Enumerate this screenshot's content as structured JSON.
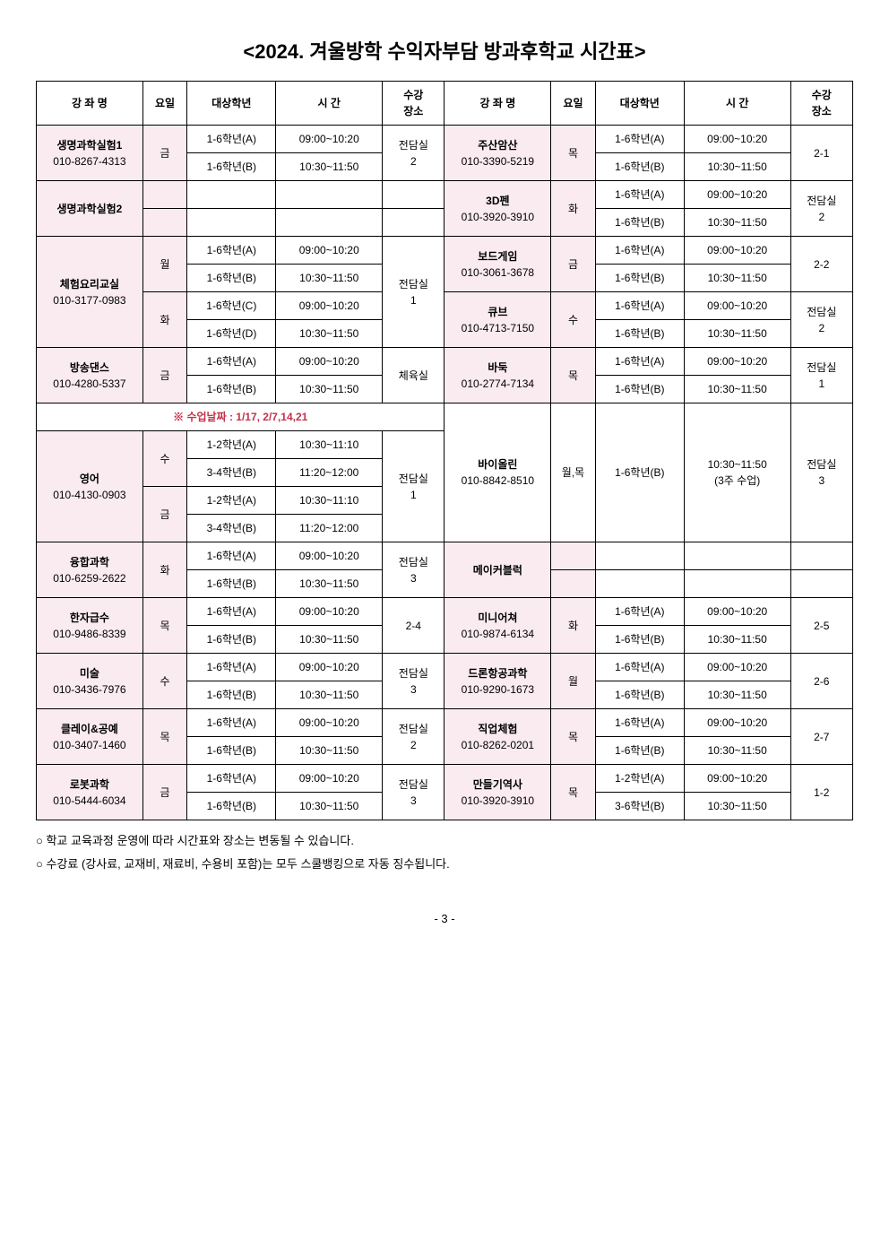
{
  "title": "<2024. 겨울방학 수익자부담 방과후학교 시간표>",
  "headers": {
    "course": "강 좌 명",
    "day": "요일",
    "grade": "대상학년",
    "time": "시 간",
    "place": "수강\n장소"
  },
  "colors": {
    "pink": "#f9ebf0",
    "noteText": "#c4324a"
  },
  "footnotes": [
    "○ 학교 교육과정 운영에 따라 시간표와 장소는 변동될 수 있습니다.",
    "○ 수강료 (강사료, 교재비, 재료비, 수용비 포함)는 모두 스쿨뱅킹으로 자동 징수됩니다."
  ],
  "pageNumber": "- 3 -",
  "noteLine": "※ 수업날짜 : 1/17, 2/7,14,21",
  "left": {
    "r1": {
      "name": "생명과학실험1",
      "phone": "010-8267-4313",
      "day": "금",
      "gA": "1-6학년(A)",
      "tA": "09:00~10:20",
      "gB": "1-6학년(B)",
      "tB": "10:30~11:50",
      "place": "전담실\n2"
    },
    "r2": {
      "name": "생명과학실험2"
    },
    "r3": {
      "name": "체험요리교실",
      "phone": "010-3177-0983",
      "day1": "월",
      "day2": "화",
      "gA": "1-6학년(A)",
      "tA": "09:00~10:20",
      "gB": "1-6학년(B)",
      "tB": "10:30~11:50",
      "gC": "1-6학년(C)",
      "tC": "09:00~10:20",
      "gD": "1-6학년(D)",
      "tD": "10:30~11:50",
      "place": "전담실\n1"
    },
    "r4": {
      "name": "방송댄스",
      "phone": "010-4280-5337",
      "day": "금",
      "gA": "1-6학년(A)",
      "tA": "09:00~10:20",
      "gB": "1-6학년(B)",
      "tB": "10:30~11:50",
      "place": "체육실"
    },
    "r5": {
      "name": "영어",
      "phone": "010-4130-0903",
      "day1": "수",
      "day2": "금",
      "gA": "1-2학년(A)",
      "tA": "10:30~11:10",
      "gB": "3-4학년(B)",
      "tB": "11:20~12:00",
      "gC": "1-2학년(A)",
      "tC": "10:30~11:10",
      "gD": "3-4학년(B)",
      "tD": "11:20~12:00",
      "place": "전담실\n1"
    },
    "r6": {
      "name": "융합과학",
      "phone": "010-6259-2622",
      "day": "화",
      "gA": "1-6학년(A)",
      "tA": "09:00~10:20",
      "gB": "1-6학년(B)",
      "tB": "10:30~11:50",
      "place": "전담실\n3"
    },
    "r7": {
      "name": "한자급수",
      "phone": "010-9486-8339",
      "day": "목",
      "gA": "1-6학년(A)",
      "tA": "09:00~10:20",
      "gB": "1-6학년(B)",
      "tB": "10:30~11:50",
      "place": "2-4"
    },
    "r8": {
      "name": "미술",
      "phone": "010-3436-7976",
      "day": "수",
      "gA": "1-6학년(A)",
      "tA": "09:00~10:20",
      "gB": "1-6학년(B)",
      "tB": "10:30~11:50",
      "place": "전담실\n3"
    },
    "r9": {
      "name": "클레이&공예",
      "phone": "010-3407-1460",
      "day": "목",
      "gA": "1-6학년(A)",
      "tA": "09:00~10:20",
      "gB": "1-6학년(B)",
      "tB": "10:30~11:50",
      "place": "전담실\n2"
    },
    "r10": {
      "name": "로봇과학",
      "phone": "010-5444-6034",
      "day": "금",
      "gA": "1-6학년(A)",
      "tA": "09:00~10:20",
      "gB": "1-6학년(B)",
      "tB": "10:30~11:50",
      "place": "전담실\n3"
    }
  },
  "right": {
    "r1": {
      "name": "주산암산",
      "phone": "010-3390-5219",
      "day": "목",
      "gA": "1-6학년(A)",
      "tA": "09:00~10:20",
      "gB": "1-6학년(B)",
      "tB": "10:30~11:50",
      "place": "2-1"
    },
    "r2": {
      "name": "3D펜",
      "phone": "010-3920-3910",
      "day": "화",
      "gA": "1-6학년(A)",
      "tA": "09:00~10:20",
      "gB": "1-6학년(B)",
      "tB": "10:30~11:50",
      "place": "전담실\n2"
    },
    "r3": {
      "name": "보드게임",
      "phone": "010-3061-3678",
      "day": "금",
      "gA": "1-6학년(A)",
      "tA": "09:00~10:20",
      "gB": "1-6학년(B)",
      "tB": "10:30~11:50",
      "place": "2-2"
    },
    "r4": {
      "name": "큐브",
      "phone": "010-4713-7150",
      "day": "수",
      "gA": "1-6학년(A)",
      "tA": "09:00~10:20",
      "gB": "1-6학년(B)",
      "tB": "10:30~11:50",
      "place": "전담실\n2"
    },
    "r5": {
      "name": "바둑",
      "phone": "010-2774-7134",
      "day": "목",
      "gA": "1-6학년(A)",
      "tA": "09:00~10:20",
      "gB": "1-6학년(B)",
      "tB": "10:30~11:50",
      "place": "전담실\n1"
    },
    "r6": {
      "name": "바이올린",
      "phone": "010-8842-8510",
      "day": "월,목",
      "grade": "1-6학년(B)",
      "time_line1": "10:30~11:50",
      "time_line2": "(3주 수업)",
      "place": "전담실\n3"
    },
    "r7": {
      "name": "메이커블럭"
    },
    "r8": {
      "name": "미니어쳐",
      "phone": "010-9874-6134",
      "day": "화",
      "gA": "1-6학년(A)",
      "tA": "09:00~10:20",
      "gB": "1-6학년(B)",
      "tB": "10:30~11:50",
      "place": "2-5"
    },
    "r9": {
      "name": "드론항공과학",
      "phone": "010-9290-1673",
      "day": "월",
      "gA": "1-6학년(A)",
      "tA": "09:00~10:20",
      "gB": "1-6학년(B)",
      "tB": "10:30~11:50",
      "place": "2-6"
    },
    "r10": {
      "name": "직업체험",
      "phone": "010-8262-0201",
      "day": "목",
      "gA": "1-6학년(A)",
      "tA": "09:00~10:20",
      "gB": "1-6학년(B)",
      "tB": "10:30~11:50",
      "place": "2-7"
    },
    "r11": {
      "name": "만들기역사",
      "phone": "010-3920-3910",
      "day": "목",
      "gA": "1-2학년(A)",
      "tA": "09:00~10:20",
      "gB": "3-6학년(B)",
      "tB": "10:30~11:50",
      "place": "1-2"
    }
  }
}
